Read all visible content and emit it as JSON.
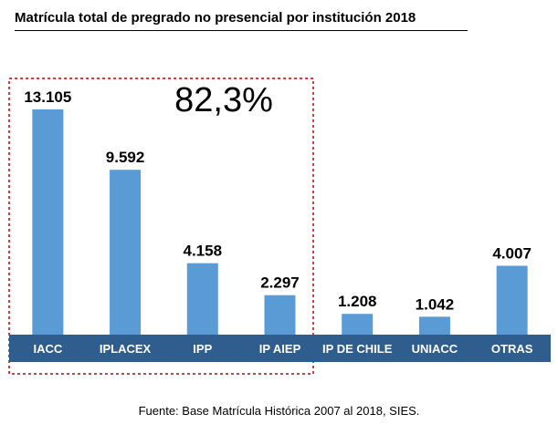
{
  "title": "Matrícula total de pregrado no presencial por institución 2018",
  "highlight_label": "82,3%",
  "source": "Fuente: Base Matrícula Histórica 2007 al 2018, SIES.",
  "colors": {
    "bar": "#5b9bd5",
    "axis_band": "#2e5d8e",
    "axis_text": "#ffffff",
    "highlight_border": "#c00000"
  },
  "chart_data": {
    "type": "bar",
    "title": "Matrícula total de pregrado no presencial por institución 2018",
    "xlabel": "",
    "ylabel": "",
    "categories": [
      "IACC",
      "IPLACEX",
      "IPP",
      "IP AIEP",
      "IP DE CHILE",
      "UNIACC",
      "OTRAS"
    ],
    "values": [
      13105,
      9592,
      4158,
      2297,
      1208,
      1042,
      4007
    ],
    "value_labels": [
      "13.105",
      "9.592",
      "4.158",
      "2.297",
      "1.208",
      "1.042",
      "4.007"
    ],
    "ylim": [
      0,
      13105
    ],
    "grid": false,
    "legend": "none",
    "annotations": [
      {
        "text": "82,3%",
        "applies_to": [
          "IACC",
          "IPLACEX",
          "IPP",
          "IP AIEP"
        ]
      }
    ]
  }
}
